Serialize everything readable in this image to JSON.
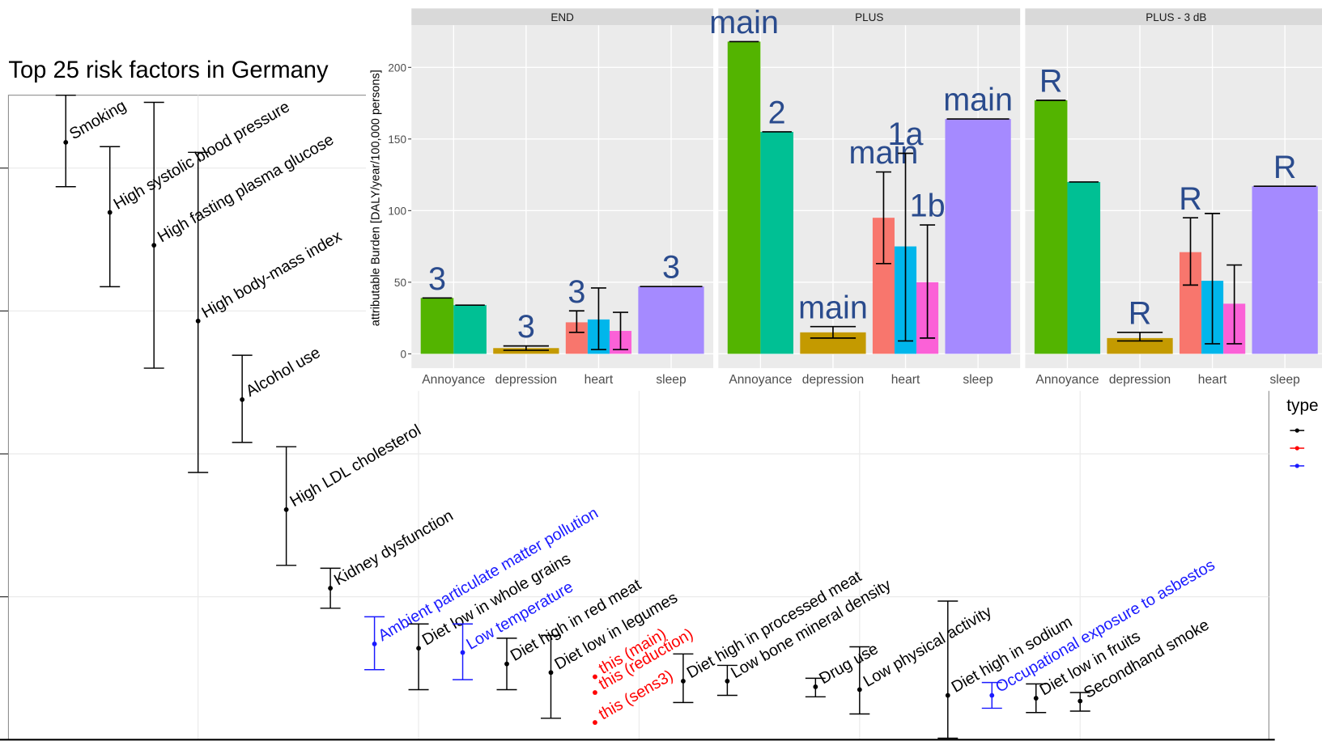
{
  "chart_data": [
    {
      "type": "errorbar",
      "title": "Top 25 risk factors in Germany",
      "categories": [
        "Smoking",
        "High systolic blood pressure",
        "High fasting plasma glucose",
        "High body-mass index",
        "Alcohol use",
        "High LDL cholesterol",
        "Kidney dysfunction",
        "Ambient particulate matter pollution",
        "Diet low in whole grains",
        "Low temperature",
        "Diet high in red meat",
        "Diet low in legumes",
        "Diet high in processed meat",
        "Low bone mineral density",
        "Drug use",
        "Low physical activity",
        "Diet high in sodium",
        "Occupational exposure to asbestos",
        "Diet low in fruits",
        "Secondhand smoke"
      ],
      "x": [
        1,
        2,
        3,
        4,
        5,
        6,
        7,
        8,
        9,
        10,
        11,
        12,
        15,
        16,
        18,
        19,
        21,
        22,
        23,
        24
      ],
      "values": [
        4.18,
        3.69,
        3.46,
        2.93,
        2.38,
        1.61,
        1.06,
        0.67,
        0.64,
        0.61,
        0.53,
        0.47,
        0.41,
        0.41,
        0.37,
        0.35,
        0.31,
        0.31,
        0.29,
        0.27
      ],
      "lower": [
        3.87,
        3.17,
        2.6,
        1.87,
        2.08,
        1.22,
        0.92,
        0.49,
        0.35,
        0.42,
        0.35,
        0.15,
        0.26,
        0.31,
        0.3,
        0.18,
        0.01,
        0.22,
        0.19,
        0.2
      ],
      "upper": [
        4.51,
        4.15,
        4.46,
        4.11,
        2.69,
        2.05,
        1.2,
        0.86,
        0.81,
        0.81,
        0.71,
        0.73,
        0.6,
        0.52,
        0.43,
        0.65,
        0.97,
        0.4,
        0.39,
        0.33
      ],
      "colors": [
        "#000000",
        "#000000",
        "#000000",
        "#000000",
        "#000000",
        "#000000",
        "#000000",
        "#1a1aff",
        "#000000",
        "#1a1aff",
        "#000000",
        "#000000",
        "#000000",
        "#000000",
        "#000000",
        "#000000",
        "#000000",
        "#1a1aff",
        "#000000",
        "#000000"
      ],
      "annotations": [
        {
          "text": "this (main)",
          "x": 13,
          "value": 0.44,
          "color": "#ff0000"
        },
        {
          "text": "this (reduction)",
          "x": 13,
          "value": 0.33,
          "color": "#ff0000"
        },
        {
          "text": "this (sens3)",
          "x": 13,
          "value": 0.12,
          "color": "#ff0000"
        }
      ],
      "xlim": [
        -0.3,
        28.28
      ],
      "xticks": [
        4,
        9,
        14,
        19,
        24
      ],
      "ylim": [
        0,
        4.51
      ],
      "yticks": [
        1,
        2,
        3,
        4
      ],
      "grid": true,
      "legend_title": "type",
      "legend_colors": [
        "#000000",
        "#ff0000",
        "#1a1aff"
      ]
    },
    {
      "type": "facet-bar",
      "y_label": "attributable Burden [DALY/year/100,000 persons]",
      "categories": [
        "Annoyance",
        "depression",
        "heart",
        "sleep"
      ],
      "ylim": [
        -10,
        229.4
      ],
      "yticks": [
        0,
        50,
        100,
        150,
        200
      ],
      "bar_colors": [
        [
          "#53b400",
          "#00c094"
        ],
        [
          "#c49a00"
        ],
        [
          "#f8766d",
          "#00b6eb",
          "#fb61d7"
        ],
        [
          "#a58aff"
        ]
      ],
      "label_color": "#2a4b8d",
      "facets": [
        {
          "title": "END",
          "values": [
            [
              39,
              34
            ],
            [
              4
            ],
            [
              22,
              24,
              16
            ],
            [
              47
            ]
          ],
          "lower": [
            [
              null,
              null
            ],
            [
              2.5
            ],
            [
              15,
              3,
              3
            ],
            [
              null
            ]
          ],
          "upper": [
            [
              null,
              null
            ],
            [
              5.5
            ],
            [
              30,
              46,
              29
            ],
            [
              null
            ]
          ],
          "labels": [
            [
              "3",
              null
            ],
            [
              "3"
            ],
            [
              "3",
              null,
              null
            ],
            [
              "3"
            ]
          ]
        },
        {
          "title": "PLUS",
          "values": [
            [
              218,
              155
            ],
            [
              15
            ],
            [
              95,
              75,
              50
            ],
            [
              164
            ]
          ],
          "lower": [
            [
              null,
              null
            ],
            [
              11
            ],
            [
              63,
              9,
              11
            ],
            [
              null
            ]
          ],
          "upper": [
            [
              null,
              null
            ],
            [
              19
            ],
            [
              127,
              140,
              90
            ],
            [
              null
            ]
          ],
          "labels": [
            [
              "main",
              "2"
            ],
            [
              "main"
            ],
            [
              "main",
              "1a",
              "1b"
            ],
            [
              "main"
            ]
          ]
        },
        {
          "title": "PLUS - 3 dB",
          "values": [
            [
              177,
              120
            ],
            [
              11
            ],
            [
              71,
              51,
              35
            ],
            [
              117
            ]
          ],
          "lower": [
            [
              null,
              null
            ],
            [
              9
            ],
            [
              48,
              7,
              7
            ],
            [
              null
            ]
          ],
          "upper": [
            [
              null,
              null
            ],
            [
              15
            ],
            [
              95,
              98,
              62
            ],
            [
              null
            ]
          ],
          "labels": [
            [
              "R",
              null
            ],
            [
              "R"
            ],
            [
              "R",
              null,
              null
            ],
            [
              "R"
            ]
          ]
        }
      ]
    }
  ]
}
